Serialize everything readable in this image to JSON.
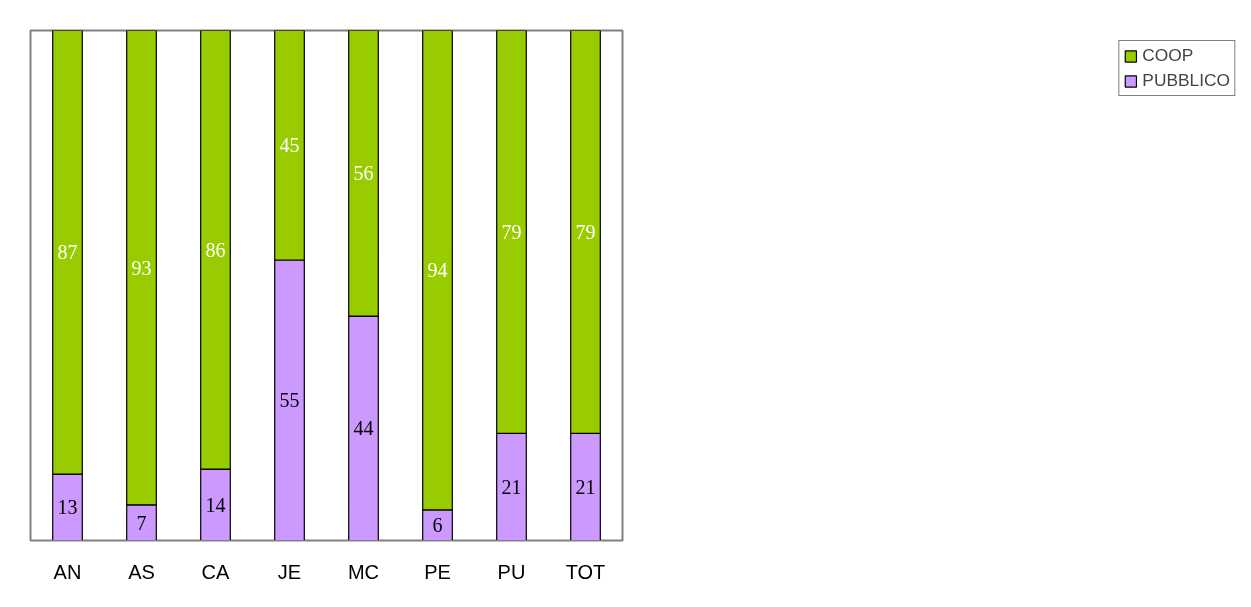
{
  "chart_data": {
    "type": "bar",
    "stacked": true,
    "data_labels": true,
    "legend": "right",
    "grid": false,
    "categories": [
      "AN",
      "AS",
      "CA",
      "JE",
      "MC",
      "PE",
      "PU",
      "TOT"
    ],
    "series": [
      {
        "name": "PUBBLICO",
        "color": "#cc99ff",
        "values": [
          13,
          7,
          14,
          55,
          44,
          6,
          21,
          21
        ]
      },
      {
        "name": "COOP",
        "color": "#99cc00",
        "values": [
          87,
          93,
          86,
          45,
          56,
          94,
          79,
          79
        ]
      }
    ]
  }
}
